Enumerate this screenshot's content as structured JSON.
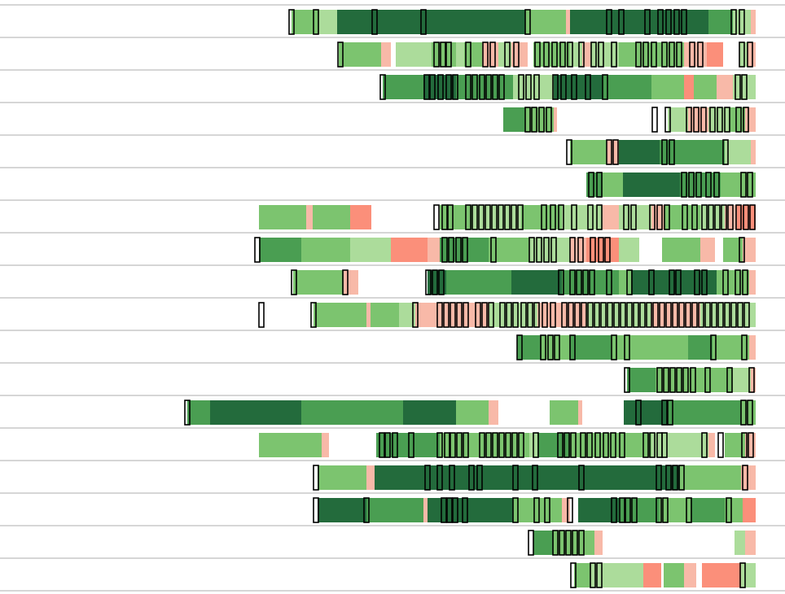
{
  "chart_data": {
    "type": "heatmap",
    "xlim": [
      0,
      964
    ],
    "colors": [
      "#fb8f7a",
      "#f8b9a8",
      "#acdc9b",
      "#7cc46f",
      "#4a9e52",
      "#236b3c"
    ],
    "rows": [
      {
        "runs": [
          [
            358,
            392,
            3
          ],
          [
            392,
            414,
            2
          ],
          [
            414,
            645,
            5
          ],
          [
            645,
            695,
            3
          ],
          [
            695,
            700,
            1
          ],
          [
            700,
            870,
            5
          ],
          [
            870,
            900,
            4
          ],
          [
            900,
            922,
            2
          ],
          [
            922,
            928,
            1
          ]
        ],
        "markers": [
          355,
          385,
          457,
          517,
          645,
          745,
          760,
          792,
          808,
          818,
          828,
          837,
          898,
          908
        ]
      },
      {
        "runs": [
          [
            416,
            468,
            3
          ],
          [
            468,
            480,
            1
          ],
          [
            486,
            530,
            2
          ],
          [
            530,
            560,
            3
          ],
          [
            560,
            570,
            2
          ],
          [
            570,
            592,
            3
          ],
          [
            592,
            612,
            1
          ],
          [
            612,
            628,
            2
          ],
          [
            628,
            648,
            1
          ],
          [
            655,
            700,
            3
          ],
          [
            700,
            715,
            2
          ],
          [
            715,
            725,
            1
          ],
          [
            725,
            760,
            2
          ],
          [
            760,
            780,
            3
          ],
          [
            780,
            840,
            3
          ],
          [
            840,
            868,
            1
          ],
          [
            868,
            888,
            0
          ],
          [
            908,
            918,
            2
          ],
          [
            918,
            928,
            1
          ]
        ],
        "markers": [
          415,
          533,
          541,
          548,
          572,
          593,
          602,
          620,
          631,
          657,
          668,
          678,
          688,
          697,
          711,
          726,
          735,
          751,
          781,
          790,
          800,
          813,
          822,
          831,
          847,
          857,
          908,
          918
        ]
      },
      {
        "runs": [
          [
            470,
            520,
            4
          ],
          [
            520,
            560,
            5
          ],
          [
            560,
            630,
            4
          ],
          [
            630,
            680,
            2
          ],
          [
            680,
            740,
            5
          ],
          [
            740,
            800,
            4
          ],
          [
            800,
            840,
            3
          ],
          [
            840,
            852,
            0
          ],
          [
            852,
            880,
            3
          ],
          [
            880,
            900,
            1
          ],
          [
            900,
            928,
            2
          ]
        ],
        "markers": [
          467,
          521,
          528,
          538,
          548,
          556,
          572,
          580,
          589,
          597,
          605,
          613,
          637,
          646,
          656,
          679,
          689,
          702,
          719,
          740,
          903,
          911
        ]
      },
      {
        "runs": [
          [
            618,
            645,
            4
          ],
          [
            645,
            680,
            3
          ],
          [
            680,
            684,
            1
          ],
          [
            820,
            845,
            2
          ],
          [
            845,
            870,
            1
          ],
          [
            870,
            895,
            2
          ],
          [
            895,
            915,
            3
          ],
          [
            915,
            928,
            1
          ]
        ],
        "markers": [
          645,
          653,
          662,
          671,
          801,
          817,
          843,
          852,
          861,
          872,
          881,
          890,
          904,
          913
        ]
      },
      {
        "runs": [
          [
            700,
            745,
            3
          ],
          [
            745,
            760,
            1
          ],
          [
            760,
            810,
            5
          ],
          [
            810,
            850,
            4
          ],
          [
            850,
            890,
            4
          ],
          [
            890,
            922,
            2
          ],
          [
            922,
            928,
            1
          ]
        ],
        "markers": [
          696,
          745,
          753,
          813,
          822,
          888
        ]
      },
      {
        "runs": [
          [
            720,
            740,
            4
          ],
          [
            740,
            765,
            3
          ],
          [
            765,
            835,
            5
          ],
          [
            835,
            885,
            4
          ],
          [
            885,
            928,
            3
          ]
        ],
        "markers": [
          723,
          733,
          837,
          846,
          855,
          867,
          877,
          910,
          918
        ]
      },
      {
        "runs": [
          [
            318,
            376,
            3
          ],
          [
            376,
            384,
            1
          ],
          [
            384,
            430,
            3
          ],
          [
            430,
            456,
            0
          ],
          [
            540,
            580,
            3
          ],
          [
            580,
            640,
            2
          ],
          [
            640,
            690,
            3
          ],
          [
            690,
            740,
            2
          ],
          [
            740,
            760,
            1
          ],
          [
            760,
            800,
            2
          ],
          [
            800,
            815,
            1
          ],
          [
            815,
            860,
            3
          ],
          [
            860,
            890,
            2
          ],
          [
            890,
            905,
            1
          ],
          [
            905,
            928,
            0
          ]
        ],
        "markers": [
          533,
          543,
          550,
          572,
          580,
          588,
          596,
          604,
          612,
          620,
          628,
          636,
          665,
          676,
          686,
          702,
          722,
          733,
          766,
          775,
          798,
          807,
          816,
          838,
          850,
          862,
          870,
          878,
          886,
          894,
          904,
          913,
          921
        ]
      },
      {
        "runs": [
          [
            318,
            370,
            4
          ],
          [
            370,
            430,
            3
          ],
          [
            430,
            480,
            2
          ],
          [
            480,
            525,
            0
          ],
          [
            525,
            540,
            1
          ],
          [
            540,
            600,
            4
          ],
          [
            600,
            650,
            3
          ],
          [
            650,
            700,
            2
          ],
          [
            700,
            720,
            1
          ],
          [
            720,
            760,
            0
          ],
          [
            760,
            785,
            2
          ],
          [
            813,
            860,
            3
          ],
          [
            860,
            878,
            1
          ],
          [
            888,
            912,
            3
          ],
          [
            912,
            928,
            1
          ]
        ],
        "markers": [
          313,
          543,
          551,
          560,
          568,
          603,
          650,
          659,
          668,
          677,
          700,
          710,
          725,
          735,
          743,
          908
        ]
      },
      {
        "runs": [
          [
            360,
            422,
            3
          ],
          [
            422,
            440,
            1
          ],
          [
            525,
            548,
            5
          ],
          [
            548,
            628,
            4
          ],
          [
            628,
            690,
            5
          ],
          [
            690,
            760,
            4
          ],
          [
            760,
            775,
            3
          ],
          [
            775,
            880,
            5
          ],
          [
            880,
            920,
            3
          ],
          [
            920,
            928,
            1
          ]
        ],
        "markers": [
          358,
          421,
          523,
          531,
          539,
          686,
          700,
          708,
          716,
          724,
          745,
          770,
          797,
          822,
          830,
          853,
          862,
          888,
          903,
          912
        ]
      },
      {
        "runs": [
          [
            385,
            450,
            3
          ],
          [
            450,
            455,
            1
          ],
          [
            455,
            490,
            3
          ],
          [
            490,
            510,
            2
          ],
          [
            510,
            540,
            1
          ],
          [
            540,
            600,
            1
          ],
          [
            600,
            660,
            2
          ],
          [
            660,
            720,
            1
          ],
          [
            720,
            800,
            2
          ],
          [
            800,
            860,
            1
          ],
          [
            860,
            928,
            2
          ]
        ],
        "markers": [
          318,
          382,
          507,
          537,
          545,
          553,
          561,
          569,
          584,
          592,
          600,
          614,
          622,
          630,
          640,
          648,
          656,
          666,
          676,
          690,
          698,
          706,
          714,
          722,
          730,
          738,
          746,
          754,
          762,
          770,
          778,
          786,
          794,
          802,
          810,
          818,
          826,
          834,
          842,
          850,
          858,
          866,
          874,
          882,
          890,
          898,
          906,
          914
        ]
      },
      {
        "runs": [
          [
            635,
            665,
            4
          ],
          [
            665,
            700,
            3
          ],
          [
            700,
            750,
            4
          ],
          [
            750,
            845,
            3
          ],
          [
            845,
            875,
            4
          ],
          [
            875,
            920,
            3
          ],
          [
            920,
            928,
            1
          ]
        ],
        "markers": [
          635,
          664,
          673,
          681,
          700,
          751,
          767,
          873,
          911
        ]
      },
      {
        "runs": [
          [
            770,
            805,
            4
          ],
          [
            805,
            860,
            3
          ],
          [
            860,
            900,
            3
          ],
          [
            900,
            922,
            2
          ],
          [
            922,
            928,
            1
          ]
        ],
        "markers": [
          767,
          807,
          815,
          823,
          831,
          839,
          848,
          866,
          893,
          920
        ]
      },
      {
        "runs": [
          [
            230,
            258,
            4
          ],
          [
            258,
            370,
            5
          ],
          [
            370,
            495,
            4
          ],
          [
            495,
            560,
            5
          ],
          [
            560,
            600,
            3
          ],
          [
            600,
            612,
            1
          ],
          [
            675,
            710,
            3
          ],
          [
            710,
            715,
            1
          ],
          [
            766,
            820,
            5
          ],
          [
            820,
            910,
            4
          ],
          [
            910,
            928,
            3
          ]
        ],
        "markers": [
          227,
          781,
          813,
          820,
          910,
          918
        ]
      },
      {
        "runs": [
          [
            318,
            395,
            3
          ],
          [
            395,
            404,
            1
          ],
          [
            462,
            540,
            4
          ],
          [
            540,
            650,
            3
          ],
          [
            650,
            660,
            2
          ],
          [
            660,
            700,
            4
          ],
          [
            700,
            800,
            3
          ],
          [
            800,
            870,
            2
          ],
          [
            870,
            878,
            1
          ],
          [
            890,
            915,
            3
          ],
          [
            915,
            928,
            1
          ]
        ],
        "markers": [
          466,
          473,
          482,
          502,
          537,
          546,
          553,
          561,
          569,
          589,
          597,
          605,
          613,
          621,
          629,
          637,
          655,
          685,
          693,
          701,
          713,
          721,
          731,
          741,
          750,
          761,
          790,
          798,
          807,
          813,
          862,
          882,
          911,
          919
        ]
      },
      {
        "runs": [
          [
            390,
            450,
            3
          ],
          [
            450,
            460,
            1
          ],
          [
            460,
            835,
            5
          ],
          [
            835,
            910,
            3
          ],
          [
            910,
            928,
            1
          ]
        ],
        "markers": [
          385,
          522,
          537,
          552,
          576,
          586,
          630,
          654,
          711,
          806,
          818,
          826,
          834,
          912
        ]
      },
      {
        "runs": [
          [
            390,
            450,
            5
          ],
          [
            450,
            520,
            4
          ],
          [
            520,
            525,
            1
          ],
          [
            525,
            630,
            5
          ],
          [
            630,
            690,
            3
          ],
          [
            690,
            700,
            1
          ],
          [
            710,
            760,
            5
          ],
          [
            760,
            810,
            4
          ],
          [
            810,
            848,
            3
          ],
          [
            848,
            890,
            4
          ],
          [
            890,
            912,
            3
          ],
          [
            912,
            928,
            0
          ]
        ],
        "markers": [
          385,
          447,
          542,
          549,
          556,
          568,
          630,
          656,
          669,
          697,
          751,
          761,
          768,
          776,
          806,
          814,
          843,
          892
        ]
      },
      {
        "runs": [
          [
            655,
            680,
            4
          ],
          [
            680,
            730,
            3
          ],
          [
            730,
            740,
            1
          ],
          [
            902,
            915,
            2
          ],
          [
            915,
            928,
            1
          ]
        ],
        "markers": [
          649,
          679,
          687,
          695,
          703,
          711
        ]
      },
      {
        "runs": [
          [
            705,
            725,
            3
          ],
          [
            725,
            790,
            2
          ],
          [
            790,
            812,
            0
          ],
          [
            815,
            840,
            3
          ],
          [
            840,
            855,
            1
          ],
          [
            862,
            910,
            0
          ],
          [
            910,
            928,
            2
          ]
        ],
        "markers": [
          701,
          725,
          733,
          909
        ]
      }
    ]
  }
}
